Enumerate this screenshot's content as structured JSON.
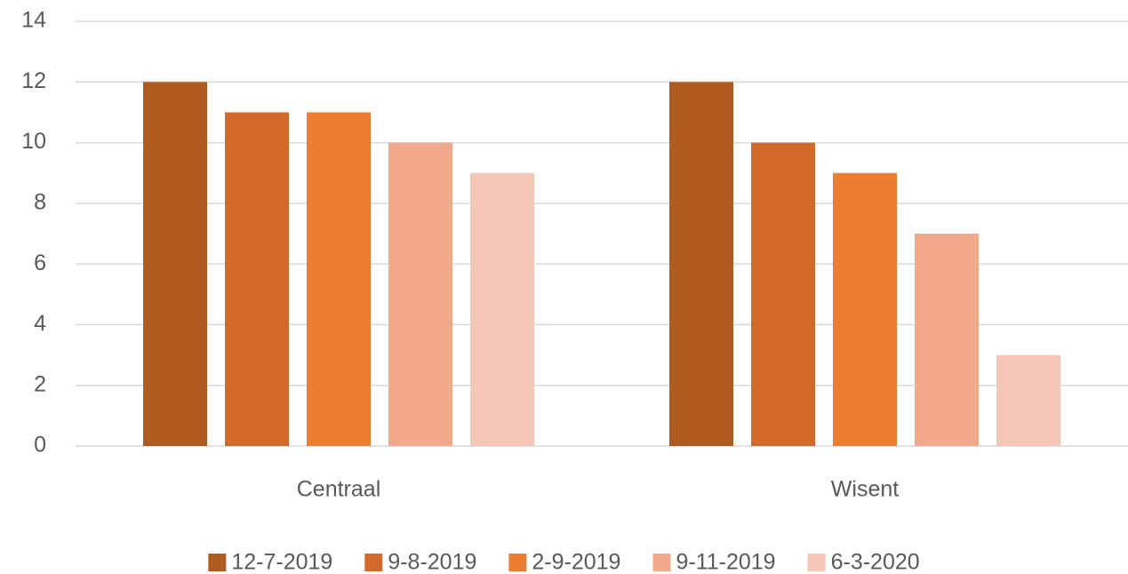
{
  "chart_data": {
    "type": "bar",
    "categories": [
      "Centraal",
      "Wisent"
    ],
    "series": [
      {
        "name": "12-7-2019",
        "color": "#b05b20",
        "values": [
          12,
          12
        ]
      },
      {
        "name": "9-8-2019",
        "color": "#d26a2b",
        "values": [
          11,
          10
        ]
      },
      {
        "name": "2-9-2019",
        "color": "#ed7d31",
        "values": [
          11,
          9
        ]
      },
      {
        "name": "9-11-2019",
        "color": "#f1a88b",
        "values": [
          10,
          7
        ]
      },
      {
        "name": "6-3-2020",
        "color": "#f5c5b6",
        "values": [
          9,
          3
        ]
      }
    ],
    "ylim": [
      0,
      14
    ],
    "yticks": [
      0,
      2,
      4,
      6,
      8,
      10,
      12,
      14
    ],
    "grid": true,
    "legend": "bottom"
  }
}
